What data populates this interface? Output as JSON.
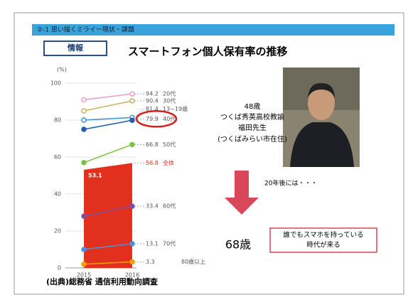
{
  "slide": {
    "header": "②-1 思い描くミライー現状・課題",
    "tag": "情報",
    "source": "(出典)総務省 通信利用動向調査",
    "profile": {
      "age": "48歳",
      "job": "つくば秀英高校教諭",
      "name": "福田先生",
      "home": "(つくばみらい市在住)"
    },
    "future": {
      "caption": "20年後には・・・",
      "age": "68歳",
      "message": [
        "誰でもスマホを持っている",
        "時代が来る"
      ]
    }
  },
  "chart_data": {
    "type": "line",
    "title": "スマートフォン個人保有率の推移",
    "y_label": "(%)",
    "categories": [
      "2015",
      "2016"
    ],
    "ylim": [
      0,
      100
    ],
    "yticks": [
      0,
      20,
      40,
      60,
      80,
      100
    ],
    "grid": true,
    "series": [
      {
        "name": "20代",
        "color": "#f29ac2",
        "values": [
          91,
          94.2
        ]
      },
      {
        "name": "30代",
        "color": "#c9b35c",
        "values": [
          85,
          90.4
        ]
      },
      {
        "name": "13~19歳",
        "color": "#3c8fd2",
        "values": [
          80,
          81.4
        ]
      },
      {
        "name": "40代",
        "color": "#1f5fae",
        "values": [
          75,
          79.9
        ]
      },
      {
        "name": "50代",
        "color": "#7cc243",
        "values": [
          57,
          66.8
        ]
      },
      {
        "name": "全体",
        "color": "#e2301f",
        "values": [
          53.1,
          56.8
        ],
        "area": true
      },
      {
        "name": "60代",
        "color": "#7a52a3",
        "values": [
          28,
          33.4
        ]
      },
      {
        "name": "70代",
        "color": "#4f8fd3",
        "values": [
          10,
          13.1
        ]
      },
      {
        "name": "80歳以上",
        "color": "#f2a100",
        "values": [
          2,
          3.3
        ]
      }
    ]
  }
}
